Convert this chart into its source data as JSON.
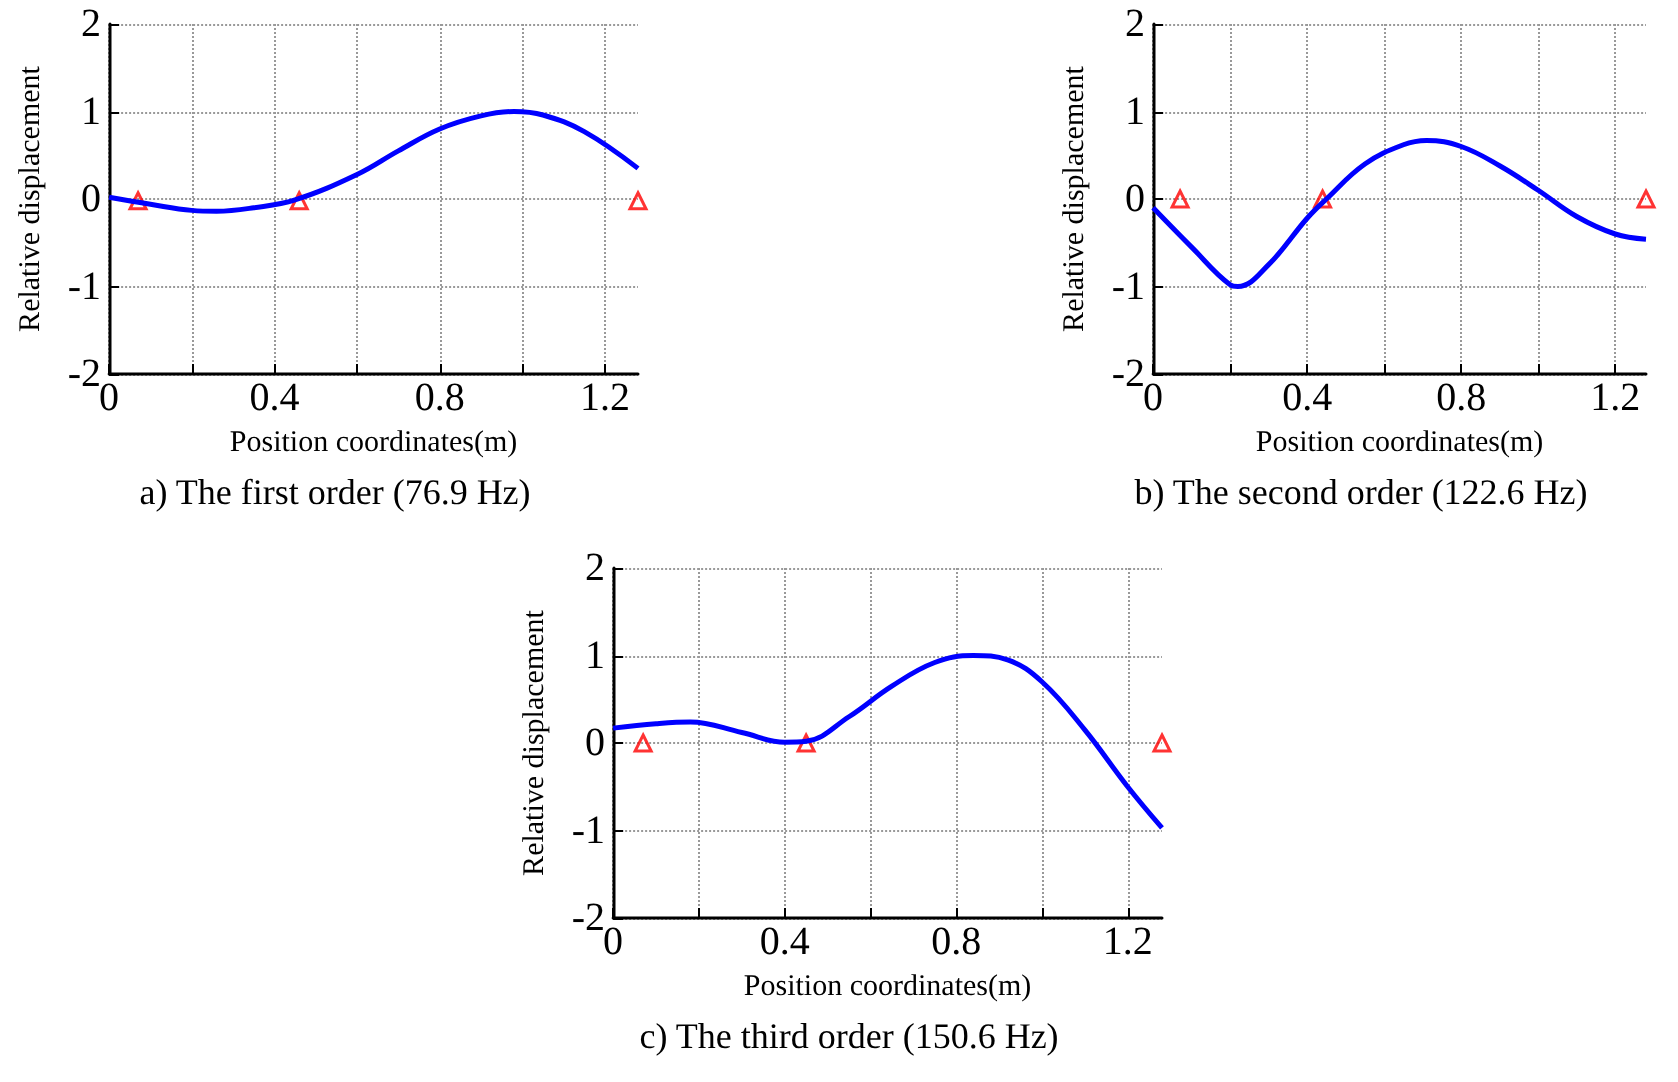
{
  "chart_data": [
    {
      "type": "line",
      "title": "a) The first order (76.9 Hz)",
      "xlabel": "Position coordinates(m)",
      "ylabel": "Relative displacement",
      "xlim": [
        0,
        1.28
      ],
      "xticks": [
        0,
        {
          "value": 0.2,
          "label": null
        },
        0.4,
        {
          "value": 0.6,
          "label": null
        },
        0.8,
        {
          "value": 1.0,
          "label": null
        },
        1.2
      ],
      "ylim": [
        -2,
        2
      ],
      "yticks": [
        -2,
        -1,
        0,
        1,
        2
      ],
      "grid": true,
      "series": [
        {
          "color": "#0000ff",
          "marker": "none",
          "x": [
            0,
            0.1,
            0.2,
            0.26,
            0.35,
            0.45,
            0.6,
            0.7,
            0.8,
            0.9,
            0.98,
            1.05,
            1.15,
            1.28
          ],
          "values": [
            0.02,
            -0.06,
            -0.13,
            -0.14,
            -0.1,
            -0.01,
            0.28,
            0.55,
            0.8,
            0.95,
            1.0,
            0.96,
            0.77,
            0.35
          ]
        },
        {
          "type": "scatter",
          "color": "#ff0000",
          "marker": "triangle",
          "x": [
            0.07,
            0.46,
            1.28
          ],
          "values": [
            -0.02,
            -0.02,
            -0.02
          ]
        }
      ]
    },
    {
      "type": "line",
      "title": "b) The second order (122.6 Hz)",
      "xlabel": "Position coordinates(m)",
      "ylabel": "Relative displacement",
      "xlim": [
        0,
        1.28
      ],
      "xticks": [
        0,
        {
          "value": 0.2,
          "label": null
        },
        0.4,
        {
          "value": 0.6,
          "label": null
        },
        0.8,
        {
          "value": 1.0,
          "label": null
        },
        1.2
      ],
      "ylim": [
        -2,
        2
      ],
      "yticks": [
        -2,
        -1,
        0,
        1,
        2
      ],
      "grid": true,
      "series": [
        {
          "color": "#0000ff",
          "marker": "none",
          "x": [
            0,
            0.1,
            0.2,
            0.22,
            0.3,
            0.4,
            0.45,
            0.55,
            0.65,
            0.71,
            0.8,
            0.9,
            1.0,
            1.1,
            1.2,
            1.28
          ],
          "values": [
            -0.1,
            -0.55,
            -0.98,
            -1.0,
            -0.75,
            -0.22,
            0,
            0.4,
            0.62,
            0.67,
            0.6,
            0.38,
            0.1,
            -0.2,
            -0.4,
            -0.46
          ]
        },
        {
          "type": "scatter",
          "color": "#ff0000",
          "marker": "triangle",
          "x": [
            0.07,
            0.44,
            1.28
          ],
          "values": [
            0,
            0,
            0
          ]
        }
      ]
    },
    {
      "type": "line",
      "title": "c) The third order (150.6 Hz)",
      "xlabel": "Position coordinates(m)",
      "ylabel": "Relative displacement",
      "xlim": [
        0,
        1.28
      ],
      "xticks": [
        0,
        {
          "value": 0.2,
          "label": null
        },
        0.4,
        {
          "value": 0.6,
          "label": null
        },
        0.8,
        {
          "value": 1.0,
          "label": null
        },
        1.2
      ],
      "ylim": [
        -2,
        2
      ],
      "yticks": [
        -2,
        -1,
        0,
        1,
        2
      ],
      "grid": true,
      "series": [
        {
          "color": "#0000ff",
          "marker": "none",
          "x": [
            0,
            0.1,
            0.18,
            0.3,
            0.4,
            0.45,
            0.55,
            0.65,
            0.75,
            0.84,
            0.92,
            1.0,
            1.1,
            1.2,
            1.28
          ],
          "values": [
            0.17,
            0.22,
            0.24,
            0.12,
            0.01,
            0.02,
            0.3,
            0.65,
            0.92,
            1.0,
            0.95,
            0.7,
            0.15,
            -0.5,
            -0.97
          ]
        },
        {
          "type": "scatter",
          "color": "#ff0000",
          "marker": "triangle",
          "x": [
            0.07,
            0.45,
            1.28
          ],
          "values": [
            0,
            0,
            0
          ]
        }
      ]
    }
  ]
}
